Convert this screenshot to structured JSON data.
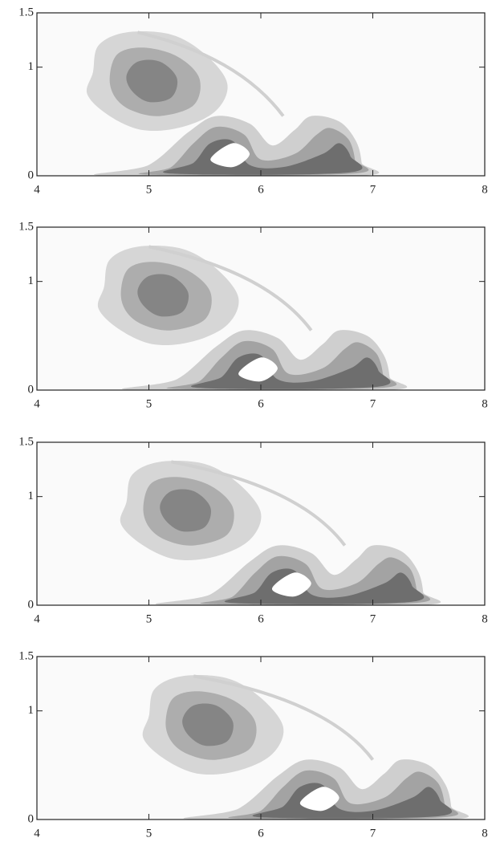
{
  "chart_data": [
    {
      "type": "contour",
      "xlim": [
        4,
        8
      ],
      "ylim": [
        0,
        1.5
      ],
      "xticks": [
        4,
        5,
        6,
        7,
        8
      ],
      "yticks": [
        0,
        1,
        1.5
      ]
    },
    {
      "type": "contour",
      "xlim": [
        4,
        8
      ],
      "ylim": [
        0,
        1.5
      ],
      "xticks": [
        4,
        5,
        6,
        7,
        8
      ],
      "yticks": [
        0,
        1,
        1.5
      ]
    },
    {
      "type": "contour",
      "xlim": [
        4,
        8
      ],
      "ylim": [
        0,
        1.5
      ],
      "xticks": [
        4,
        5,
        6,
        7,
        8
      ],
      "yticks": [
        0,
        1,
        1.5
      ]
    },
    {
      "type": "contour",
      "xlim": [
        4,
        8
      ],
      "ylim": [
        0,
        1.5
      ],
      "xticks": [
        4,
        5,
        6,
        7,
        8
      ],
      "yticks": [
        0,
        1,
        1.5
      ]
    }
  ]
}
